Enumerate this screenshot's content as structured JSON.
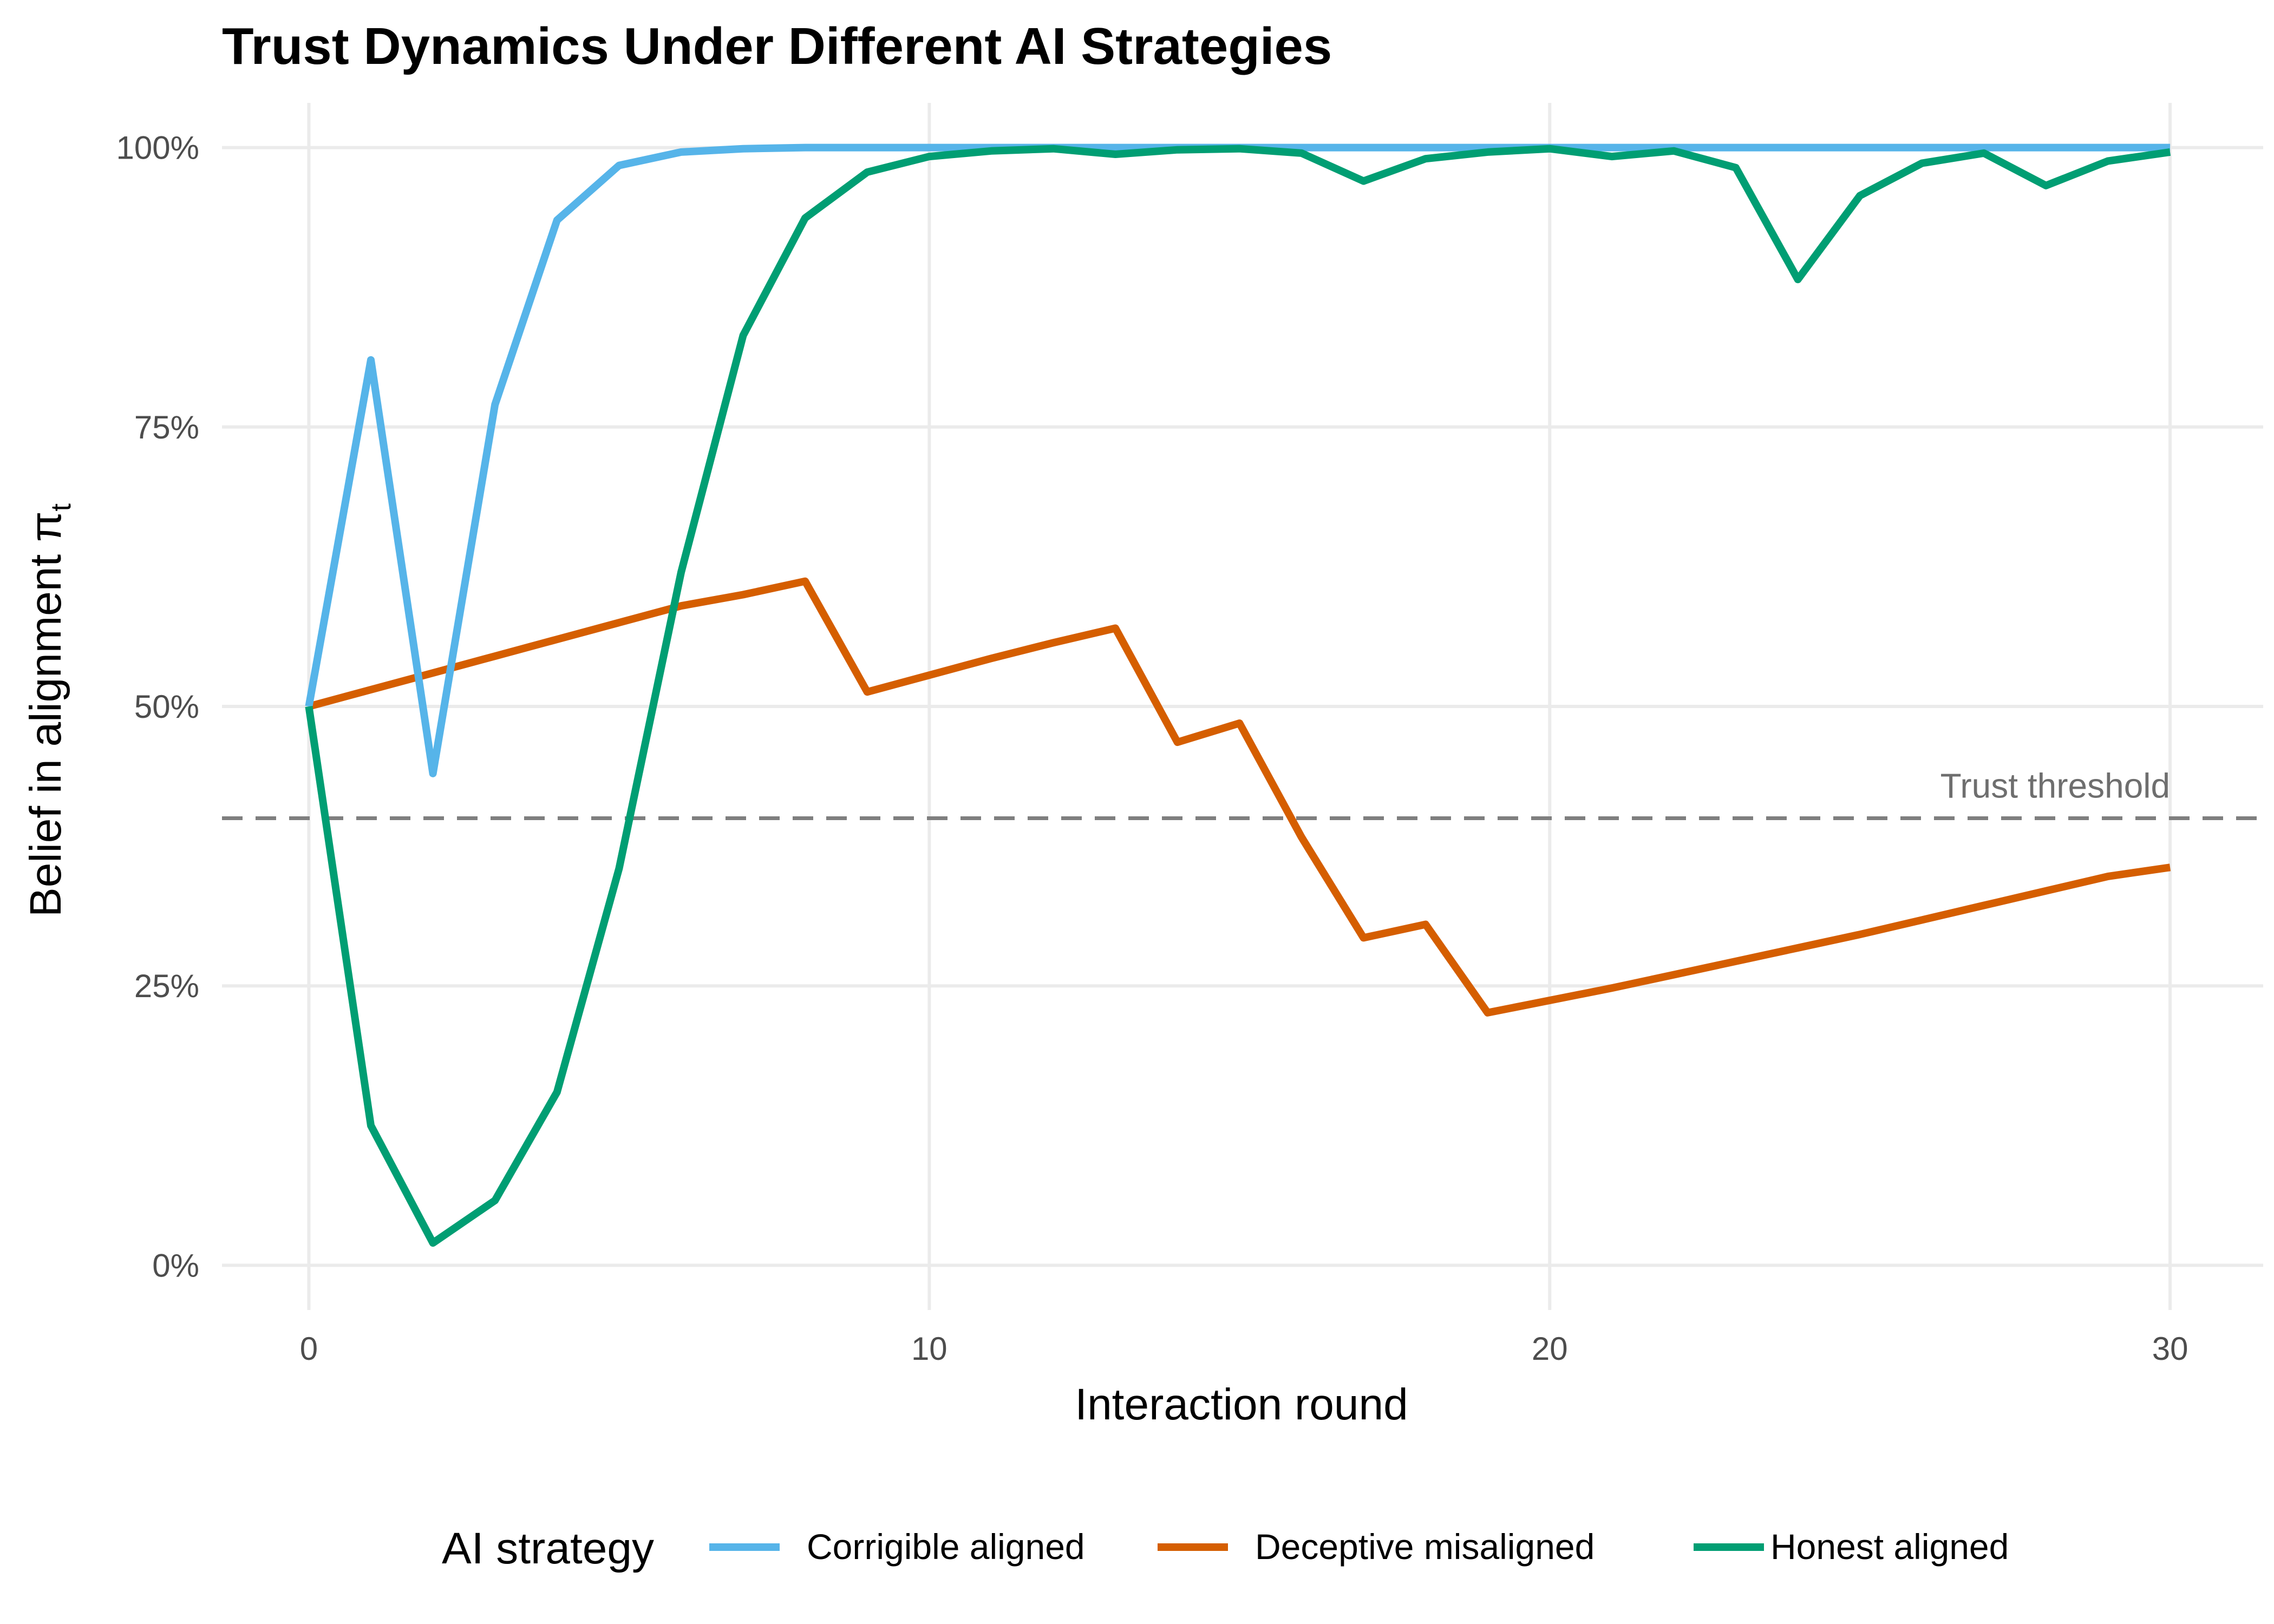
{
  "chart_data": {
    "type": "line",
    "title": "Trust Dynamics Under Different AI Strategies",
    "xlabel": "Interaction round",
    "ylabel": "Belief in alignment π",
    "ylabel_sub": "t",
    "xlim": [
      -1.4,
      31.5
    ],
    "ylim": [
      -0.04,
      1.04
    ],
    "x_ticks": [
      0,
      10,
      20,
      30
    ],
    "x_tick_labels": [
      "0",
      "10",
      "20",
      "30"
    ],
    "y_ticks": [
      0,
      0.25,
      0.5,
      0.75,
      1
    ],
    "y_tick_labels": [
      "0%",
      "25%",
      "50%",
      "75%",
      "100%"
    ],
    "grid": true,
    "legend": {
      "title": "AI strategy",
      "position": "bottom"
    },
    "x": [
      0,
      1,
      2,
      3,
      4,
      5,
      6,
      7,
      8,
      9,
      10,
      11,
      12,
      13,
      14,
      15,
      16,
      17,
      18,
      19,
      20,
      21,
      22,
      23,
      24,
      25,
      26,
      27,
      28,
      29,
      30
    ],
    "series": [
      {
        "name": "Corrigible aligned",
        "color": "#56B4E9",
        "values": [
          0.5,
          0.81,
          0.44,
          0.77,
          0.935,
          0.984,
          0.996,
          0.999,
          1.0,
          1.0,
          1.0,
          1.0,
          1.0,
          1.0,
          1.0,
          1.0,
          1.0,
          1.0,
          1.0,
          1.0,
          1.0,
          1.0,
          1.0,
          1.0,
          1.0,
          1.0,
          1.0,
          1.0,
          1.0,
          1.0,
          1.0
        ]
      },
      {
        "name": "Deceptive misaligned",
        "color": "#D55E00",
        "values": [
          0.5,
          0.515,
          0.53,
          0.545,
          0.56,
          0.575,
          0.59,
          0.6,
          0.612,
          0.513,
          0.528,
          0.543,
          0.557,
          0.57,
          0.468,
          0.485,
          0.383,
          0.293,
          0.305,
          0.226,
          0.237,
          0.248,
          0.26,
          0.272,
          0.284,
          0.296,
          0.309,
          0.322,
          0.335,
          0.348,
          0.356
        ]
      },
      {
        "name": "Honest aligned",
        "color": "#009E73",
        "values": [
          0.5,
          0.125,
          0.02,
          0.058,
          0.155,
          0.355,
          0.62,
          0.832,
          0.937,
          0.978,
          0.992,
          0.997,
          0.999,
          0.994,
          0.998,
          0.999,
          0.995,
          0.97,
          0.99,
          0.996,
          0.999,
          0.992,
          0.997,
          0.982,
          0.882,
          0.957,
          0.986,
          0.995,
          0.966,
          0.988,
          0.996
        ]
      }
    ],
    "reference_line": {
      "y": 0.4,
      "label": "Trust threshold",
      "color": "#7f7f7f"
    }
  }
}
